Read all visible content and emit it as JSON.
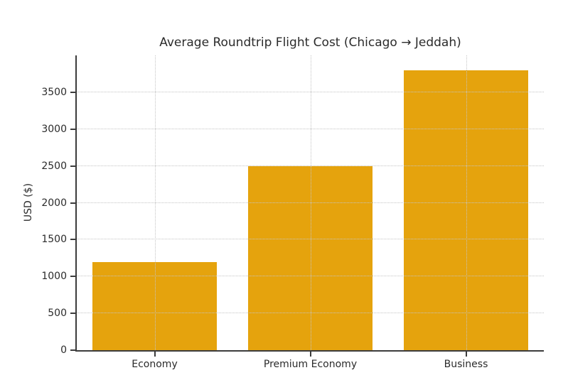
{
  "figure": {
    "background": "#ffffff"
  },
  "chart_data": {
    "type": "bar",
    "title": "Average Roundtrip Flight Cost (Chicago → Jeddah)",
    "categories": [
      "Economy",
      "Premium Economy",
      "Business"
    ],
    "values": [
      1200,
      2500,
      3800
    ],
    "xlabel": "",
    "ylabel": "USD ($)",
    "ylim": [
      0,
      4000
    ],
    "yticks": [
      0,
      500,
      1000,
      1500,
      2000,
      2500,
      3000,
      3500
    ],
    "bar_color": "#e5a30d",
    "bar_width_fraction": 0.8,
    "grid": true,
    "grid_style": "dotted",
    "grid_color": "#c4c4c4",
    "grid_above_bars": true,
    "legend": "none",
    "spine_color": "#3c3c3c",
    "text_color": "#2b2b2b"
  }
}
